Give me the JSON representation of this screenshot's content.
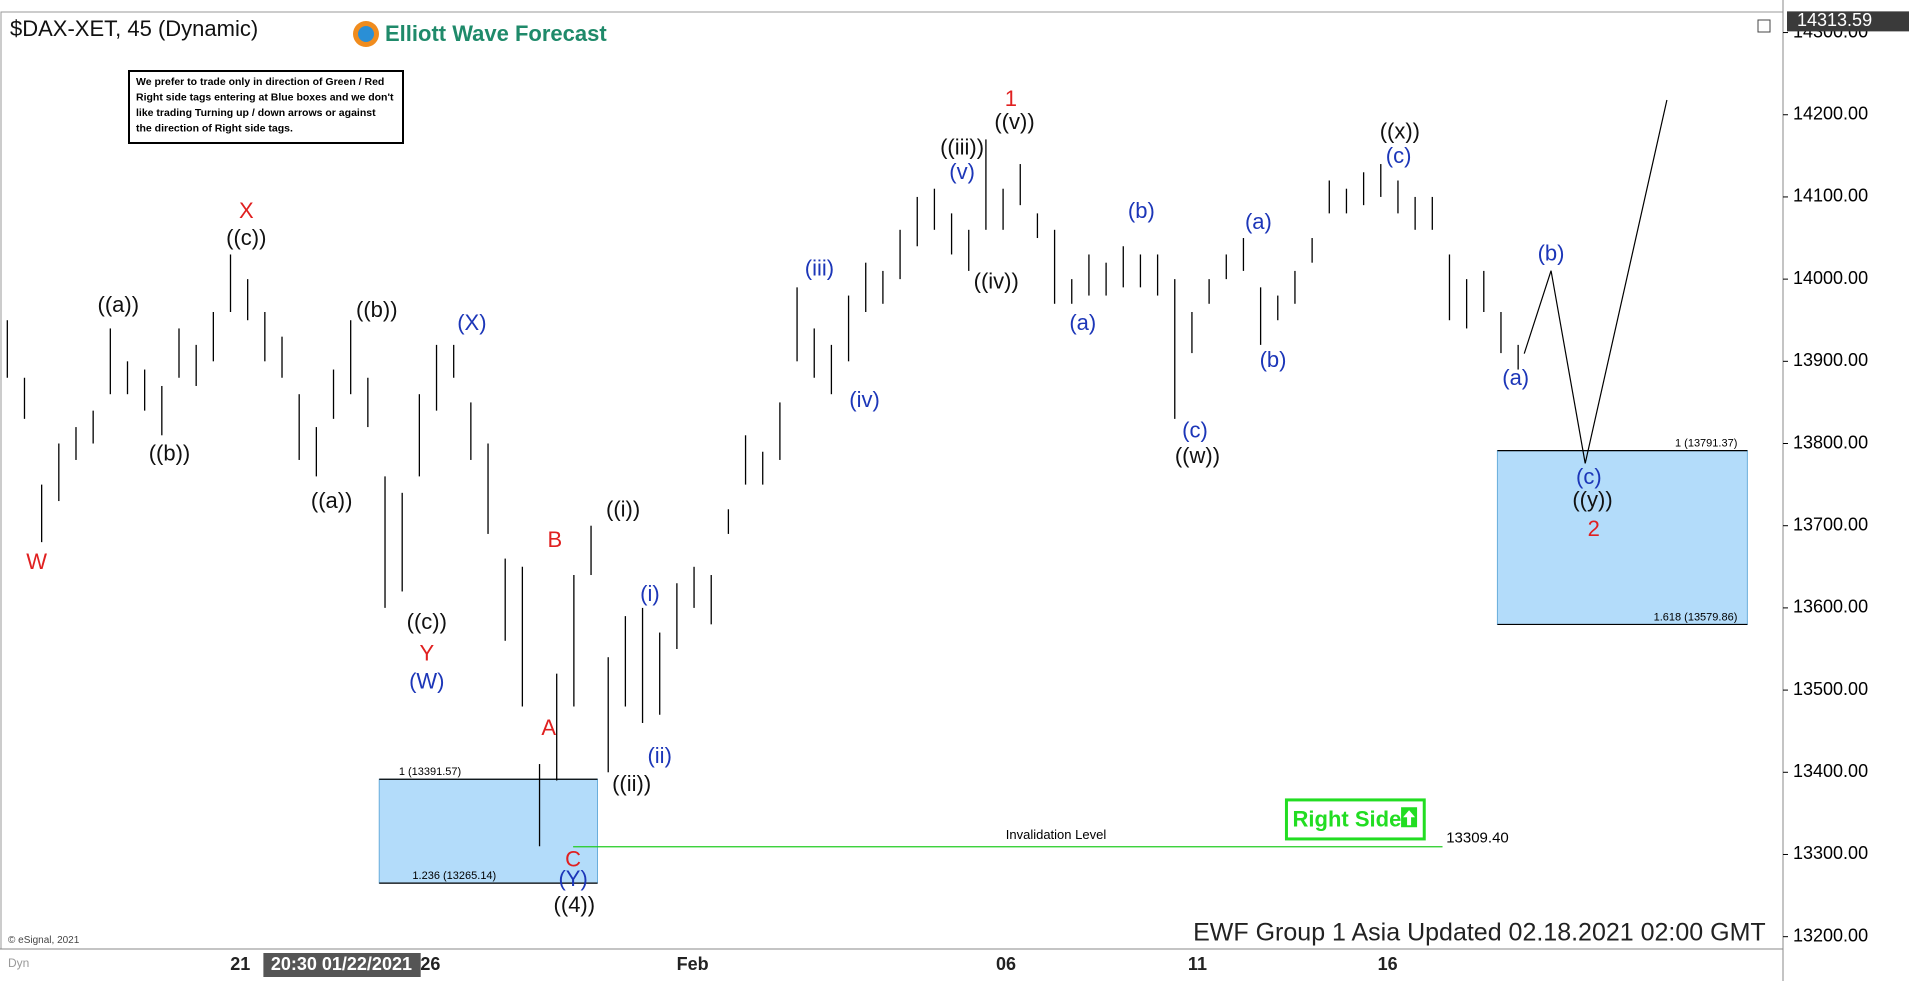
{
  "chart_data": {
    "type": "ohlc",
    "title": "$DAX-XET, 45 (Dynamic)",
    "brand": "Elliott Wave Forecast",
    "disclaimer": [
      "We prefer to trade only in direction of Green / Red",
      "Right side tags entering at Blue boxes and we don't",
      "like trading Turning up / down arrows or against",
      "the direction of Right side tags."
    ],
    "color": "#000000",
    "high": [
      13950,
      13880,
      13750,
      13800,
      13820,
      13840,
      13940,
      13900,
      13890,
      13870,
      13940,
      13920,
      13960,
      14030,
      14000,
      13960,
      13930,
      13860,
      13820,
      13890,
      13950,
      13880,
      13760,
      13740,
      13860,
      13920,
      13920,
      13850,
      13800,
      13660,
      13650,
      13410,
      13520,
      13640,
      13700,
      13540,
      13590,
      13600,
      13570,
      13630,
      13650,
      13640,
      13720,
      13810,
      13790,
      13850,
      13990,
      13940,
      13920,
      13980,
      14020,
      14010,
      14060,
      14100,
      14110,
      14080,
      14060,
      14170,
      14110,
      14140,
      14080,
      14060,
      14000,
      14030,
      14020,
      14040,
      14030,
      14030,
      14000,
      13960,
      14000,
      14030,
      14050,
      13990,
      13980,
      14010,
      14050,
      14120,
      14110,
      14130,
      14140,
      14120,
      14100,
      14100,
      14030,
      14000,
      14010,
      13960,
      13920
    ],
    "low": [
      13880,
      13830,
      13680,
      13730,
      13780,
      13800,
      13860,
      13860,
      13840,
      13810,
      13880,
      13870,
      13900,
      13960,
      13950,
      13900,
      13880,
      13780,
      13760,
      13830,
      13860,
      13820,
      13600,
      13620,
      13760,
      13840,
      13880,
      13780,
      13690,
      13560,
      13480,
      13310,
      13390,
      13480,
      13640,
      13400,
      13480,
      13460,
      13470,
      13550,
      13600,
      13580,
      13690,
      13750,
      13750,
      13780,
      13900,
      13880,
      13860,
      13900,
      13960,
      13970,
      14000,
      14040,
      14060,
      14030,
      14010,
      14060,
      14060,
      14090,
      14050,
      13970,
      13970,
      13980,
      13980,
      13990,
      13990,
      13980,
      13830,
      13910,
      13970,
      14000,
      14010,
      13920,
      13950,
      13970,
      14020,
      14080,
      14080,
      14090,
      14100,
      14080,
      14060,
      14060,
      13950,
      13940,
      13960,
      13910,
      13890
    ],
    "ylim": [
      13185,
      14325
    ],
    "yticks": [
      {
        "value": 13200,
        "label": "13200.00"
      },
      {
        "value": 13300,
        "label": "13300.00"
      },
      {
        "value": 13400,
        "label": "13400.00"
      },
      {
        "value": 13500,
        "label": "13500.00"
      },
      {
        "value": 13600,
        "label": "13600.00"
      },
      {
        "value": 13700,
        "label": "13700.00"
      },
      {
        "value": 13800,
        "label": "13800.00"
      },
      {
        "value": 13900,
        "label": "13900.00"
      },
      {
        "value": 14000,
        "label": "14000.00"
      },
      {
        "value": 14100,
        "label": "14100.00"
      },
      {
        "value": 14200,
        "label": "14200.00"
      },
      {
        "value": 14300,
        "label": "14300.00"
      }
    ],
    "last_price": 14313.59,
    "xtick_labels": [
      "21",
      "26",
      "Feb",
      "06",
      "11",
      "16"
    ],
    "cursor_label": "20:30 01/22/2021",
    "zones": [
      {
        "top": {
          "value": 13391.57,
          "label": "1 (13391.57)"
        },
        "bottom": {
          "value": 13265.14,
          "label": "1.236 (13265.14)"
        },
        "color": "#b3dcfa"
      },
      {
        "top": {
          "value": 13791.37,
          "label": "1 (13791.37)"
        },
        "bottom": {
          "value": 13579.86,
          "label": "1.618 (13579.86)"
        },
        "color": "#b3dcfa"
      }
    ],
    "invalidation": {
      "text": "Invalidation Level",
      "level": {
        "value": 13309.4,
        "label": "13309.40"
      },
      "color": "#22cc22"
    },
    "right_side": "Right Side",
    "annotations": [
      {
        "text": "W",
        "color": "#e02020"
      },
      {
        "text": "((a))",
        "color": "#111111"
      },
      {
        "text": "((b))",
        "color": "#111111"
      },
      {
        "text": "X",
        "color": "#e02020"
      },
      {
        "text": "((c))",
        "color": "#111111"
      },
      {
        "text": "((a))",
        "color": "#111111"
      },
      {
        "text": "((b))",
        "color": "#111111"
      },
      {
        "text": "((c))",
        "color": "#111111"
      },
      {
        "text": "Y",
        "color": "#e02020"
      },
      {
        "text": "(W)",
        "color": "#1c36b8"
      },
      {
        "text": "(X)",
        "color": "#1c36b8"
      },
      {
        "text": "B",
        "color": "#e02020"
      },
      {
        "text": "A",
        "color": "#e02020"
      },
      {
        "text": "C",
        "color": "#e02020"
      },
      {
        "text": "(Y)",
        "color": "#1c36b8"
      },
      {
        "text": "((4))",
        "color": "#111111"
      },
      {
        "text": "((i))",
        "color": "#111111"
      },
      {
        "text": "((ii))",
        "color": "#111111"
      },
      {
        "text": "(i)",
        "color": "#1c36b8"
      },
      {
        "text": "(ii)",
        "color": "#1c36b8"
      },
      {
        "text": "(iii)",
        "color": "#1c36b8"
      },
      {
        "text": "(iv)",
        "color": "#1c36b8"
      },
      {
        "text": "(v)",
        "color": "#1c36b8"
      },
      {
        "text": "((iii))",
        "color": "#111111"
      },
      {
        "text": "1",
        "color": "#e02020"
      },
      {
        "text": "((v))",
        "color": "#111111"
      },
      {
        "text": "((iv))",
        "color": "#111111"
      },
      {
        "text": "(a)",
        "color": "#1c36b8"
      },
      {
        "text": "(b)",
        "color": "#1c36b8"
      },
      {
        "text": "(c)",
        "color": "#1c36b8"
      },
      {
        "text": "((w))",
        "color": "#111111"
      },
      {
        "text": "(a)",
        "color": "#1c36b8"
      },
      {
        "text": "(b)",
        "color": "#1c36b8"
      },
      {
        "text": "(c)",
        "color": "#1c36b8"
      },
      {
        "text": "((x))",
        "color": "#111111"
      },
      {
        "text": "(b)",
        "color": "#1c36b8"
      },
      {
        "text": "(a)",
        "color": "#1c36b8"
      },
      {
        "text": "(c)",
        "color": "#1c36b8"
      },
      {
        "text": "((y))",
        "color": "#111111"
      },
      {
        "text": "2",
        "color": "#e02020"
      }
    ],
    "footer": "EWF Group 1 Asia Updated 02.18.2021 02:00 GMT",
    "copyright": "© eSignal, 2021",
    "corner": "Dyn"
  }
}
